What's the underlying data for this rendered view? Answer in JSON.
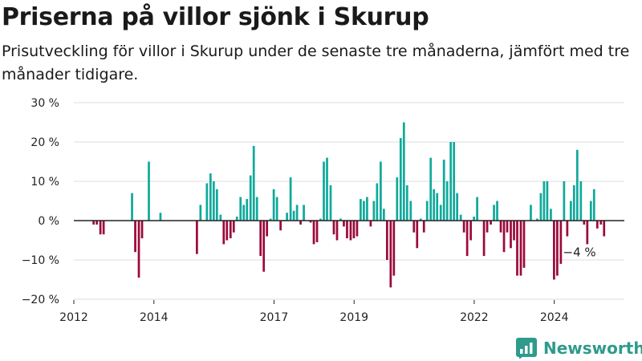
{
  "title": "Priserna på villor sjönk i Skurup",
  "subtitle": "Prisutveckling för villor i Skurup under de senaste tre månaderna, jämfört med tre månader tidigare.",
  "brand": {
    "name": "Newsworthy",
    "color": "#2e9b8c",
    "icon": "newsworthy-logo-icon"
  },
  "colors": {
    "positive": "#10a99b",
    "negative": "#9b0a3c",
    "grid": "#dddddd",
    "axis": "#222222",
    "text": "#222222"
  },
  "chart_data": {
    "type": "bar",
    "xlabel": "",
    "ylabel": "",
    "ylim": [
      -20,
      30
    ],
    "y_ticks": [
      {
        "value": 30,
        "label": "30 %"
      },
      {
        "value": 20,
        "label": "20 %"
      },
      {
        "value": 10,
        "label": "10 %"
      },
      {
        "value": 0,
        "label": "0 %"
      },
      {
        "value": -10,
        "label": "−10 %"
      },
      {
        "value": -20,
        "label": "−20 %"
      }
    ],
    "xlim": [
      2012,
      2025.75
    ],
    "x_ticks": [
      {
        "value": 2012,
        "label": "2012"
      },
      {
        "value": 2014,
        "label": "2014"
      },
      {
        "value": 2017,
        "label": "2017"
      },
      {
        "value": 2019,
        "label": "2019"
      },
      {
        "value": 2022,
        "label": "2022"
      },
      {
        "value": 2024,
        "label": "2024"
      }
    ],
    "grid": true,
    "legend": null,
    "bar_width_years": 0.0667,
    "annotation": {
      "x": 2024.75,
      "y": -4,
      "label": "−4 %"
    },
    "points": [
      {
        "x": 2012.5,
        "y": -1
      },
      {
        "x": 2012.58,
        "y": -1
      },
      {
        "x": 2012.67,
        "y": -3.5
      },
      {
        "x": 2012.75,
        "y": -3.5
      },
      {
        "x": 2013.46,
        "y": 7
      },
      {
        "x": 2013.54,
        "y": -8
      },
      {
        "x": 2013.63,
        "y": -14.5
      },
      {
        "x": 2013.71,
        "y": -4.5
      },
      {
        "x": 2013.88,
        "y": 15
      },
      {
        "x": 2014.17,
        "y": 2
      },
      {
        "x": 2015.08,
        "y": -8.5
      },
      {
        "x": 2015.17,
        "y": 4
      },
      {
        "x": 2015.33,
        "y": 9.5
      },
      {
        "x": 2015.42,
        "y": 12
      },
      {
        "x": 2015.5,
        "y": 10
      },
      {
        "x": 2015.58,
        "y": 8
      },
      {
        "x": 2015.67,
        "y": 1.5
      },
      {
        "x": 2015.75,
        "y": -6
      },
      {
        "x": 2015.83,
        "y": -5
      },
      {
        "x": 2015.92,
        "y": -4.5
      },
      {
        "x": 2016,
        "y": -3
      },
      {
        "x": 2016.08,
        "y": 1
      },
      {
        "x": 2016.17,
        "y": 6
      },
      {
        "x": 2016.25,
        "y": 4
      },
      {
        "x": 2016.33,
        "y": 5.5
      },
      {
        "x": 2016.42,
        "y": 11.5
      },
      {
        "x": 2016.5,
        "y": 19
      },
      {
        "x": 2016.58,
        "y": 6
      },
      {
        "x": 2016.67,
        "y": -9
      },
      {
        "x": 2016.75,
        "y": -13
      },
      {
        "x": 2016.83,
        "y": -4
      },
      {
        "x": 2016.92,
        "y": 0.5
      },
      {
        "x": 2017,
        "y": 8
      },
      {
        "x": 2017.08,
        "y": 6
      },
      {
        "x": 2017.17,
        "y": -2.5
      },
      {
        "x": 2017.25,
        "y": 0
      },
      {
        "x": 2017.33,
        "y": 2
      },
      {
        "x": 2017.42,
        "y": 11
      },
      {
        "x": 2017.5,
        "y": 2.5
      },
      {
        "x": 2017.58,
        "y": 4
      },
      {
        "x": 2017.67,
        "y": -1
      },
      {
        "x": 2017.75,
        "y": 4
      },
      {
        "x": 2017.92,
        "y": -0.5
      },
      {
        "x": 2018,
        "y": -6
      },
      {
        "x": 2018.08,
        "y": -5.5
      },
      {
        "x": 2018.17,
        "y": 0.5
      },
      {
        "x": 2018.25,
        "y": 15
      },
      {
        "x": 2018.33,
        "y": 16
      },
      {
        "x": 2018.42,
        "y": 9
      },
      {
        "x": 2018.5,
        "y": -3.5
      },
      {
        "x": 2018.58,
        "y": -5
      },
      {
        "x": 2018.67,
        "y": 0.5
      },
      {
        "x": 2018.75,
        "y": -1.5
      },
      {
        "x": 2018.83,
        "y": -4.5
      },
      {
        "x": 2018.92,
        "y": -5
      },
      {
        "x": 2019,
        "y": -4.5
      },
      {
        "x": 2019.08,
        "y": -4
      },
      {
        "x": 2019.17,
        "y": 5.5
      },
      {
        "x": 2019.25,
        "y": 5
      },
      {
        "x": 2019.33,
        "y": 6
      },
      {
        "x": 2019.42,
        "y": -1.5
      },
      {
        "x": 2019.5,
        "y": 5
      },
      {
        "x": 2019.58,
        "y": 9.5
      },
      {
        "x": 2019.67,
        "y": 15
      },
      {
        "x": 2019.75,
        "y": 3
      },
      {
        "x": 2019.83,
        "y": -10
      },
      {
        "x": 2019.92,
        "y": -17
      },
      {
        "x": 2020,
        "y": -14
      },
      {
        "x": 2020.08,
        "y": 11
      },
      {
        "x": 2020.17,
        "y": 21
      },
      {
        "x": 2020.25,
        "y": 25
      },
      {
        "x": 2020.33,
        "y": 9
      },
      {
        "x": 2020.42,
        "y": 5
      },
      {
        "x": 2020.5,
        "y": -3
      },
      {
        "x": 2020.58,
        "y": -7
      },
      {
        "x": 2020.67,
        "y": 0.5
      },
      {
        "x": 2020.75,
        "y": -3
      },
      {
        "x": 2020.83,
        "y": 5
      },
      {
        "x": 2020.92,
        "y": 16
      },
      {
        "x": 2021,
        "y": 8
      },
      {
        "x": 2021.08,
        "y": 7
      },
      {
        "x": 2021.17,
        "y": 4
      },
      {
        "x": 2021.25,
        "y": 15.5
      },
      {
        "x": 2021.33,
        "y": 10
      },
      {
        "x": 2021.42,
        "y": 20
      },
      {
        "x": 2021.5,
        "y": 20
      },
      {
        "x": 2021.58,
        "y": 7
      },
      {
        "x": 2021.67,
        "y": 1.5
      },
      {
        "x": 2021.75,
        "y": -3
      },
      {
        "x": 2021.83,
        "y": -9
      },
      {
        "x": 2021.92,
        "y": -5
      },
      {
        "x": 2022,
        "y": 1
      },
      {
        "x": 2022.08,
        "y": 6
      },
      {
        "x": 2022.25,
        "y": -9
      },
      {
        "x": 2022.33,
        "y": -3
      },
      {
        "x": 2022.42,
        "y": -1
      },
      {
        "x": 2022.5,
        "y": 4
      },
      {
        "x": 2022.58,
        "y": 5
      },
      {
        "x": 2022.67,
        "y": -3
      },
      {
        "x": 2022.75,
        "y": -8
      },
      {
        "x": 2022.83,
        "y": -3
      },
      {
        "x": 2022.92,
        "y": -7
      },
      {
        "x": 2023,
        "y": -5
      },
      {
        "x": 2023.08,
        "y": -14
      },
      {
        "x": 2023.17,
        "y": -14
      },
      {
        "x": 2023.25,
        "y": -12
      },
      {
        "x": 2023.42,
        "y": 4
      },
      {
        "x": 2023.58,
        "y": 0.5
      },
      {
        "x": 2023.67,
        "y": 7
      },
      {
        "x": 2023.75,
        "y": 10
      },
      {
        "x": 2023.83,
        "y": 10
      },
      {
        "x": 2023.92,
        "y": 3
      },
      {
        "x": 2024,
        "y": -15
      },
      {
        "x": 2024.08,
        "y": -14
      },
      {
        "x": 2024.17,
        "y": -11
      },
      {
        "x": 2024.25,
        "y": 10
      },
      {
        "x": 2024.33,
        "y": -4
      },
      {
        "x": 2024.42,
        "y": 5
      },
      {
        "x": 2024.5,
        "y": 9
      },
      {
        "x": 2024.58,
        "y": 18
      },
      {
        "x": 2024.67,
        "y": 10
      },
      {
        "x": 2024.75,
        "y": -1
      },
      {
        "x": 2024.83,
        "y": -6
      },
      {
        "x": 2024.92,
        "y": 5
      },
      {
        "x": 2025,
        "y": 8
      },
      {
        "x": 2025.08,
        "y": -2
      },
      {
        "x": 2025.17,
        "y": -1
      },
      {
        "x": 2025.25,
        "y": -4
      }
    ]
  }
}
